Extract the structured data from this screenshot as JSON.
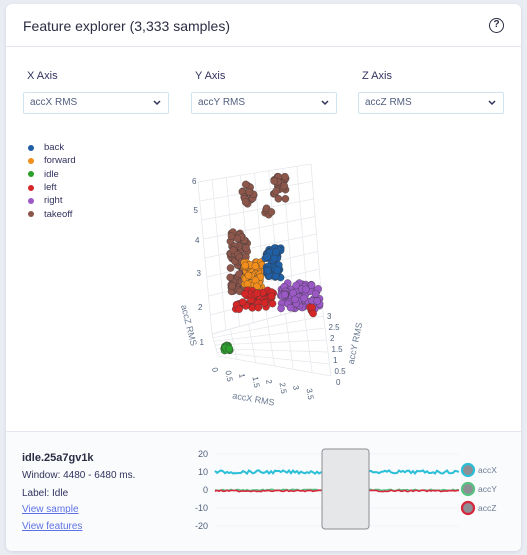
{
  "card": {
    "title": "Feature explorer (3,333 samples)",
    "help_icon": "question-circle-icon",
    "help_symbol": "?"
  },
  "axes": {
    "x": {
      "label": "X Axis",
      "selected": "accX RMS"
    },
    "y": {
      "label": "Y Axis",
      "selected": "accY RMS"
    },
    "z": {
      "label": "Z Axis",
      "selected": "accZ RMS"
    }
  },
  "legend": [
    {
      "label": "back",
      "color": "#1f5fa6"
    },
    {
      "label": "forward",
      "color": "#f28e1c"
    },
    {
      "label": "idle",
      "color": "#2ca02c"
    },
    {
      "label": "left",
      "color": "#d62728"
    },
    {
      "label": "right",
      "color": "#9b59c6"
    },
    {
      "label": "takeoff",
      "color": "#8c564b"
    }
  ],
  "plot3d": {
    "x_axis_title": "accX RMS",
    "y_axis_title": "accY RMS",
    "z_axis_title": "accZ RMS",
    "x_ticks": [
      "0",
      "0.5",
      "1",
      "1.5",
      "2",
      "2.5",
      "3",
      "3.5"
    ],
    "y_ticks": [
      "0",
      "0.5",
      "1",
      "1.5",
      "2",
      "2.5",
      "3"
    ],
    "z_ticks": [
      "1",
      "2",
      "3",
      "4",
      "5",
      "6"
    ]
  },
  "sample": {
    "name": "idle.25a7gv1k",
    "window": "Window: 4480 - 6480 ms.",
    "label": "Label: Idle",
    "view_sample": "View sample",
    "view_features": "View features"
  },
  "chart_data": {
    "type": "line",
    "yticks": [
      "20",
      "10",
      "0",
      "-10",
      "-20"
    ],
    "ylim": [
      -20,
      20
    ],
    "series": [
      {
        "name": "accX",
        "color": "#2bbfd8",
        "value": 10
      },
      {
        "name": "accY",
        "color": "#58c281",
        "value": 0
      },
      {
        "name": "accZ",
        "color": "#d7263d",
        "value": -0.5
      }
    ],
    "selection_window": "selected"
  }
}
